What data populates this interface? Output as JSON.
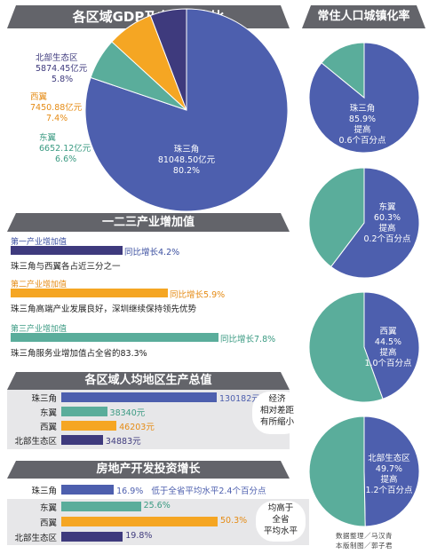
{
  "colors": {
    "blue": "#4d5fae",
    "dark_purple": "#3e3a7d",
    "orange": "#f5a623",
    "teal": "#5aad9b",
    "title_bg": "#63646a",
    "panel_bg": "#e7e7e9",
    "green_text": "#3a9a82",
    "orange_text": "#e58b14",
    "purple_text": "#3b4fa0"
  },
  "gdp": {
    "title": "各区域GDP及在全省占比",
    "slices": [
      {
        "name": "珠三角",
        "value_text": "81048.50亿元",
        "pct_text": "80.2%",
        "pct": 80.2,
        "color": "#4d5fae"
      },
      {
        "name": "北部生态区",
        "value_text": "5874.45亿元",
        "pct_text": "5.8%",
        "pct": 5.8,
        "color": "#3e3a7d"
      },
      {
        "name": "西翼",
        "value_text": "7450.88亿元",
        "pct_text": "7.4%",
        "pct": 7.4,
        "color": "#f5a623"
      },
      {
        "name": "东翼",
        "value_text": "6652.12亿元",
        "pct_text": "6.6%",
        "pct": 6.6,
        "color": "#5aad9b"
      }
    ]
  },
  "industry": {
    "title": "一二三产业增加值",
    "rows": [
      {
        "name": "第一产业增加值",
        "growth": "同比增长4.2%",
        "value": 4.2,
        "note": "珠三角与西翼各占近三分之一",
        "color": "#3e3a7d",
        "text_color": "#3b4fa0"
      },
      {
        "name": "第二产业增加值",
        "growth": "同比增长5.9%",
        "value": 5.9,
        "note": "珠三角高端产业发展良好，深圳继续保持领先优势",
        "color": "#f5a623",
        "text_color": "#e58b14"
      },
      {
        "name": "第三产业增加值",
        "growth": "同比增长7.8%",
        "value": 7.8,
        "note": "珠三角服务业增加值占全省的83.3%",
        "color": "#5aad9b",
        "text_color": "#3a9a82"
      }
    ]
  },
  "per_capita": {
    "title": "各区域人均地区生产总值",
    "rows": [
      {
        "name": "珠三角",
        "value": 130182,
        "label": "130182元",
        "color": "#4d5fae"
      },
      {
        "name": "东翼",
        "value": 38340,
        "label": "38340元",
        "color": "#5aad9b"
      },
      {
        "name": "西翼",
        "value": 46203,
        "label": "46203元",
        "color": "#f5a623"
      },
      {
        "name": "北部生态区",
        "value": 34883,
        "label": "34883元",
        "color": "#3e3a7d"
      }
    ],
    "note_lines": [
      "经济",
      "相对差距",
      "有所缩小"
    ]
  },
  "realestate": {
    "title": "房地产开发投资增长",
    "rows": [
      {
        "name": "珠三角",
        "value": 16.9,
        "label": "16.9%",
        "extra": "低于全省平均水平2.4个百分点",
        "color": "#4d5fae"
      },
      {
        "name": "东翼",
        "value": 25.6,
        "label": "25.6%",
        "extra": "",
        "color": "#5aad9b"
      },
      {
        "name": "西翼",
        "value": 50.3,
        "label": "50.3%",
        "extra": "",
        "color": "#f5a623"
      },
      {
        "name": "北部生态区",
        "value": 19.8,
        "label": "19.8%",
        "extra": "",
        "color": "#3e3a7d"
      }
    ],
    "note_lines": [
      "均高于",
      "全省",
      "平均水平"
    ]
  },
  "urbanization": {
    "title": "常住人口城镇化率",
    "pies": [
      {
        "name": "珠三角",
        "rate_text": "85.9%",
        "rate": 85.9,
        "up_label": "提高",
        "up_value": "0.6个百分点",
        "color": "#4d5fae"
      },
      {
        "name": "东翼",
        "rate_text": "60.3%",
        "rate": 60.3,
        "up_label": "提高",
        "up_value": "0.2个百分点",
        "color": "#4d5fae"
      },
      {
        "name": "西翼",
        "rate_text": "44.5%",
        "rate": 44.5,
        "up_label": "提高",
        "up_value": "1.0个百分点",
        "color": "#4d5fae"
      },
      {
        "name": "北部生态区",
        "rate_text": "49.7%",
        "rate": 49.7,
        "up_label": "提高",
        "up_value": "1.2个百分点",
        "color": "#4d5fae"
      }
    ],
    "rest_color": "#5aad9b"
  },
  "credits": {
    "line1": "数据整理／马汉青",
    "line2": "本版制图／郭子君"
  },
  "chart_data": [
    {
      "type": "pie",
      "title": "各区域GDP及在全省占比",
      "categories": [
        "珠三角",
        "北部生态区",
        "西翼",
        "东翼"
      ],
      "values": [
        80.2,
        5.8,
        7.4,
        6.6
      ],
      "amounts": [
        "81048.50亿元",
        "5874.45亿元",
        "7450.88亿元",
        "6652.12亿元"
      ]
    },
    {
      "type": "bar",
      "title": "一二三产业增加值",
      "categories": [
        "第一产业增加值",
        "第二产业增加值",
        "第三产业增加值"
      ],
      "values": [
        4.2,
        5.9,
        7.8
      ]
    },
    {
      "type": "bar",
      "title": "各区域人均地区生产总值",
      "categories": [
        "珠三角",
        "东翼",
        "西翼",
        "北部生态区"
      ],
      "values": [
        130182,
        38340,
        46203,
        34883
      ]
    },
    {
      "type": "bar",
      "title": "房地产开发投资增长",
      "categories": [
        "珠三角",
        "东翼",
        "西翼",
        "北部生态区"
      ],
      "values": [
        16.9,
        25.6,
        50.3,
        19.8
      ]
    },
    {
      "type": "pie",
      "title": "常住人口城镇化率",
      "categories": [
        "珠三角",
        "东翼",
        "西翼",
        "北部生态区"
      ],
      "values": [
        85.9,
        60.3,
        44.5,
        49.7
      ]
    }
  ]
}
